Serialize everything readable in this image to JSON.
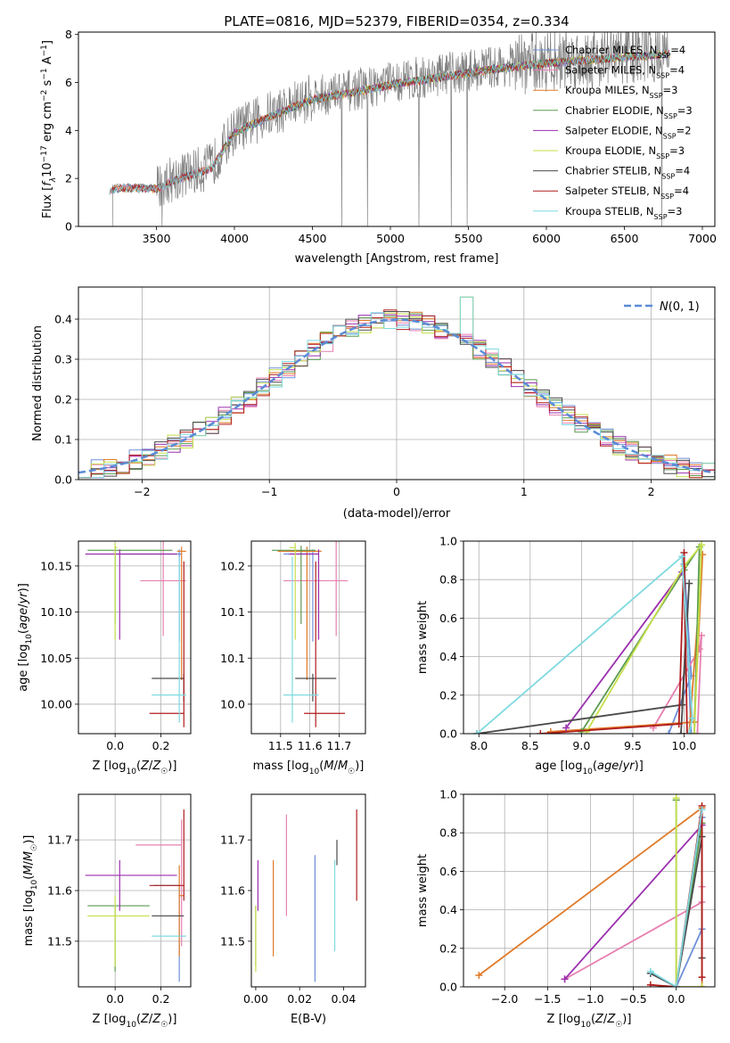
{
  "colors": {
    "chabrier_miles": "#6f8fd8",
    "salpeter_miles": "#e77fb0",
    "kroupa_miles": "#e07b2a",
    "chabrier_elodie": "#5a9a50",
    "salpeter_elodie": "#9b2fae",
    "kroupa_elodie": "#c5df4a",
    "chabrier_stelib": "#4a4a4a",
    "salpeter_stelib": "#b01c1c",
    "kroupa_stelib": "#7fd9e0",
    "gaussian": "#5b8bd6",
    "data_spectrum": "#808080"
  },
  "legend_spectrum": [
    {
      "key": "chabrier_miles",
      "label": "Chabrier MILES, N",
      "sub": "SSP",
      "tail": "=4"
    },
    {
      "key": "salpeter_miles",
      "label": "Salpeter MILES, N",
      "sub": "SSP",
      "tail": "=4"
    },
    {
      "key": "kroupa_miles",
      "label": "Kroupa MILES, N",
      "sub": "SSP",
      "tail": "=3"
    },
    {
      "key": "chabrier_elodie",
      "label": "Chabrier ELODIE, N",
      "sub": "SSP",
      "tail": "=3"
    },
    {
      "key": "salpeter_elodie",
      "label": "Salpeter ELODIE, N",
      "sub": "SSP",
      "tail": "=2"
    },
    {
      "key": "kroupa_elodie",
      "label": "Kroupa ELODIE, N",
      "sub": "SSP",
      "tail": "=3"
    },
    {
      "key": "chabrier_stelib",
      "label": "Chabrier STELIB, N",
      "sub": "SSP",
      "tail": "=4"
    },
    {
      "key": "salpeter_stelib",
      "label": "Salpeter STELIB, N",
      "sub": "SSP",
      "tail": "=4"
    },
    {
      "key": "kroupa_stelib",
      "label": "Kroupa STELIB, N",
      "sub": "SSP",
      "tail": "=3"
    }
  ],
  "chart_data": [
    {
      "id": "spectrum",
      "type": "line",
      "title": "PLATE=0816, MJD=52379, FIBERID=0354, z=0.334",
      "xlabel": "wavelength [Angstrom, rest frame]",
      "ylabel_parts": [
        "Flux [",
        "f",
        "λ",
        "10",
        "−17",
        " erg cm",
        "−2",
        " s",
        "−1",
        " A",
        "−1",
        "]"
      ],
      "xlim": [
        3000,
        7080
      ],
      "ylim": [
        0,
        8.1
      ],
      "xticks": [
        3500,
        4000,
        4500,
        5000,
        5500,
        6000,
        6500,
        7000
      ],
      "yticks": [
        0,
        2,
        4,
        6,
        8
      ],
      "grid": false,
      "legend_position": "upper right",
      "continuum_anchors": {
        "x": [
          3200,
          3300,
          3500,
          3600,
          3700,
          3850,
          4000,
          4200,
          4500,
          4700,
          5000,
          5300,
          5600,
          6000,
          6400,
          6800,
          7000
        ],
        "y": [
          1.6,
          1.7,
          1.65,
          2.0,
          2.2,
          2.5,
          4.0,
          4.6,
          5.4,
          5.6,
          6.0,
          6.3,
          6.6,
          6.9,
          7.1,
          7.3,
          7.5
        ]
      }
    },
    {
      "id": "residuals",
      "type": "step",
      "xlabel": "(data-model)/error",
      "ylabel": "Normed distribution",
      "xlim": [
        -2.5,
        2.5
      ],
      "ylim": [
        0,
        0.48
      ],
      "xticks": [
        -2,
        -1,
        0,
        1,
        2
      ],
      "yticks": [
        0.0,
        0.1,
        0.2,
        0.3,
        0.4
      ],
      "grid": true,
      "legend": "N(0,1)",
      "legend_position": "upper right",
      "bin_width": 0.1,
      "histogram_envelope": [
        0.02,
        0.03,
        0.04,
        0.045,
        0.05,
        0.06,
        0.07,
        0.085,
        0.08,
        0.07,
        0.08,
        0.09,
        0.1,
        0.12,
        0.14,
        0.15,
        0.16,
        0.19,
        0.21,
        0.23,
        0.26,
        0.28,
        0.3,
        0.32,
        0.34,
        0.35,
        0.37,
        0.39,
        0.4,
        0.41,
        0.4,
        0.38,
        0.37,
        0.41,
        0.42,
        0.4,
        0.38,
        0.39,
        0.37,
        0.35,
        0.34,
        0.32,
        0.31,
        0.36,
        0.3,
        0.29,
        0.26,
        0.23,
        0.21,
        0.2,
        0.19,
        0.17,
        0.16,
        0.14,
        0.12,
        0.1,
        0.08,
        0.07,
        0.06,
        0.05,
        0.04,
        0.035,
        0.03,
        0.025,
        0.02,
        0.015,
        0.01,
        0.01,
        0.01,
        0.01,
        0.01,
        0.01,
        0.01,
        0.01,
        0.01,
        0.01,
        0.01,
        0.01,
        0.01,
        0.01
      ],
      "spikes": {
        "0.5": 0.455,
        "0.75": 0.42,
        "-0.25": 0.43,
        "0.05": 0.43
      }
    },
    {
      "id": "age_vs_Z",
      "type": "errorbar",
      "xlabel": "Z [log10(Z/Z☉)]",
      "ylabel": "age [log10(age/yr)]",
      "xlim": [
        -0.16,
        0.33
      ],
      "ylim": [
        9.968,
        10.177
      ],
      "xticks": [
        0.0,
        0.2
      ],
      "yticks": [
        10.0,
        10.05,
        10.1,
        10.15
      ],
      "grid": true,
      "points": [
        {
          "key": "chabrier_miles",
          "x": 0.28,
          "y": 10.163,
          "xerr": [
            0.28,
            0.01
          ],
          "yerr": [
            0.095,
            0.005
          ]
        },
        {
          "key": "salpeter_miles",
          "x": 0.21,
          "y": 10.134,
          "xerr": [
            0.1,
            0.1
          ],
          "yerr": [
            0.06,
            0.06
          ]
        },
        {
          "key": "kroupa_miles",
          "x": 0.29,
          "y": 10.166,
          "xerr": [
            0.02,
            0.02
          ],
          "yerr": [
            0.14,
            0.005
          ]
        },
        {
          "key": "chabrier_elodie",
          "x": 0.0,
          "y": 10.167,
          "xerr": [
            0.12,
            0.25
          ],
          "yerr": [
            0.08,
            0.005
          ]
        },
        {
          "key": "salpeter_elodie",
          "x": 0.02,
          "y": 10.163,
          "xerr": [
            0.15,
            0.25
          ],
          "yerr": [
            0.093,
            0.005
          ]
        },
        {
          "key": "kroupa_elodie",
          "x": 0.0,
          "y": 10.17,
          "xerr": [
            0.0,
            0.01
          ],
          "yerr": [
            0.1,
            0.005
          ]
        },
        {
          "key": "chabrier_stelib",
          "x": 0.3,
          "y": 10.028,
          "xerr": [
            0.14,
            0.0
          ],
          "yerr": [
            0.025,
            0.005
          ]
        },
        {
          "key": "salpeter_stelib",
          "x": 0.3,
          "y": 9.99,
          "xerr": [
            0.15,
            0.0
          ],
          "yerr": [
            0.015,
            0.165
          ]
        },
        {
          "key": "kroupa_stelib",
          "x": 0.28,
          "y": 10.01,
          "xerr": [
            0.12,
            0.03
          ],
          "yerr": [
            0.03,
            0.15
          ]
        }
      ]
    },
    {
      "id": "age_vs_mass",
      "type": "errorbar",
      "xlabel": "mass [log10(M/M☉)]",
      "ylabel": "",
      "xlim": [
        11.4,
        11.79
      ],
      "ylim": [
        9.968,
        10.177
      ],
      "xticks": [
        11.5,
        11.6,
        11.7
      ],
      "yticks": [
        10.0,
        10.05,
        10.1,
        10.15
      ],
      "grid": true,
      "points": [
        {
          "key": "chabrier_miles",
          "x": 11.61,
          "y": 10.163,
          "xerr": [
            0.1,
            0.0
          ],
          "yerr": [
            0.095,
            0.005
          ]
        },
        {
          "key": "salpeter_miles",
          "x": 11.69,
          "y": 10.134,
          "xerr": [
            0.18,
            0.04
          ],
          "yerr": [
            0.06,
            0.06
          ]
        },
        {
          "key": "kroupa_miles",
          "x": 11.59,
          "y": 10.166,
          "xerr": [
            0.1,
            0.05
          ],
          "yerr": [
            0.14,
            0.005
          ]
        },
        {
          "key": "chabrier_elodie",
          "x": 11.57,
          "y": 10.167,
          "xerr": [
            0.1,
            0.05
          ],
          "yerr": [
            0.08,
            0.005
          ]
        },
        {
          "key": "salpeter_elodie",
          "x": 11.63,
          "y": 10.163,
          "xerr": [
            0.1,
            0.0
          ],
          "yerr": [
            0.093,
            0.005
          ]
        },
        {
          "key": "kroupa_elodie",
          "x": 11.55,
          "y": 10.17,
          "xerr": [
            0.02,
            0.0
          ],
          "yerr": [
            0.1,
            0.005
          ]
        },
        {
          "key": "chabrier_stelib",
          "x": 11.61,
          "y": 10.028,
          "xerr": [
            0.06,
            0.08
          ],
          "yerr": [
            0.025,
            0.005
          ]
        },
        {
          "key": "salpeter_stelib",
          "x": 11.62,
          "y": 9.99,
          "xerr": [
            0.04,
            0.1
          ],
          "yerr": [
            0.015,
            0.165
          ]
        },
        {
          "key": "kroupa_stelib",
          "x": 11.54,
          "y": 10.01,
          "xerr": [
            0.03,
            0.09
          ],
          "yerr": [
            0.03,
            0.15
          ]
        }
      ]
    },
    {
      "id": "weight_vs_age",
      "type": "line",
      "xlabel": "age [log10(age/yr)]",
      "ylabel": "mass weight",
      "xlim": [
        7.85,
        10.3
      ],
      "ylim": [
        0,
        1.0
      ],
      "xticks": [
        8.0,
        8.5,
        9.0,
        9.5,
        10.0
      ],
      "yticks": [
        0.0,
        0.2,
        0.4,
        0.6,
        0.8,
        1.0
      ],
      "grid": true,
      "series": [
        {
          "key": "chabrier_miles",
          "x": [
            9.85,
            10.07,
            10.0,
            10.07
          ],
          "y": [
            0.0,
            0.3,
            0.88,
            0.0
          ]
        },
        {
          "key": "salpeter_miles",
          "x": [
            9.7,
            10.15,
            10.17,
            10.13
          ],
          "y": [
            0.03,
            0.44,
            0.51,
            0.0
          ]
        },
        {
          "key": "kroupa_miles",
          "x": [
            8.7,
            10.1,
            10.18,
            10.05
          ],
          "y": [
            0.01,
            0.06,
            0.93,
            0.0
          ]
        },
        {
          "key": "chabrier_elodie",
          "x": [
            9.0,
            10.0,
            10.15,
            10.1
          ],
          "y": [
            0.01,
            0.85,
            0.97,
            0.0
          ]
        },
        {
          "key": "salpeter_elodie",
          "x": [
            8.85,
            9.98
          ],
          "y": [
            0.03,
            0.84
          ]
        },
        {
          "key": "kroupa_elodie",
          "x": [
            9.05,
            10.0,
            10.17,
            10.1
          ],
          "y": [
            0.01,
            0.87,
            0.98,
            0.0
          ]
        },
        {
          "key": "chabrier_stelib",
          "x": [
            7.98,
            9.98,
            10.05,
            9.97
          ],
          "y": [
            0.0,
            0.15,
            0.78,
            0.0
          ]
        },
        {
          "key": "salpeter_stelib",
          "x": [
            8.6,
            9.95,
            10.0,
            10.03
          ],
          "y": [
            0.0,
            0.05,
            0.94,
            0.0
          ]
        },
        {
          "key": "kroupa_stelib",
          "x": [
            7.98,
            9.98,
            10.08,
            10.05
          ],
          "y": [
            0.0,
            0.92,
            0.08,
            0.0
          ]
        }
      ]
    },
    {
      "id": "mass_vs_Z",
      "type": "errorbar",
      "xlabel": "Z [log10(Z/Z☉)]",
      "ylabel": "mass [log10(M/M☉)]",
      "xlim": [
        -0.16,
        0.33
      ],
      "ylim": [
        11.41,
        11.79
      ],
      "xticks": [
        0.0,
        0.2
      ],
      "yticks": [
        11.5,
        11.6,
        11.7
      ],
      "grid": true,
      "points": [
        {
          "key": "chabrier_miles",
          "x": 0.28,
          "y": 11.61,
          "xerr": [
            0.11,
            0.0
          ],
          "yerr": [
            0.19,
            0.0
          ]
        },
        {
          "key": "salpeter_miles",
          "x": 0.29,
          "y": 11.69,
          "xerr": [
            0.2,
            0.0
          ],
          "yerr": [
            0.2,
            0.05
          ]
        },
        {
          "key": "kroupa_miles",
          "x": 0.28,
          "y": 11.59,
          "xerr": [
            0.0,
            0.02
          ],
          "yerr": [
            0.12,
            0.06
          ]
        },
        {
          "key": "chabrier_elodie",
          "x": 0.0,
          "y": 11.57,
          "xerr": [
            0.12,
            0.15
          ],
          "yerr": [
            0.13,
            0.0
          ]
        },
        {
          "key": "salpeter_elodie",
          "x": 0.02,
          "y": 11.63,
          "xerr": [
            0.15,
            0.25
          ],
          "yerr": [
            0.07,
            0.03
          ]
        },
        {
          "key": "kroupa_elodie",
          "x": 0.0,
          "y": 11.55,
          "xerr": [
            0.12,
            0.15
          ],
          "yerr": [
            0.1,
            0.04
          ]
        },
        {
          "key": "chabrier_stelib",
          "x": 0.3,
          "y": 11.55,
          "xerr": [
            0.14,
            0.0
          ],
          "yerr": [
            0.0,
            0.0
          ]
        },
        {
          "key": "salpeter_stelib",
          "x": 0.3,
          "y": 11.61,
          "xerr": [
            0.15,
            0.0
          ],
          "yerr": [
            0.03,
            0.15
          ]
        },
        {
          "key": "kroupa_stelib",
          "x": 0.28,
          "y": 11.51,
          "xerr": [
            0.12,
            0.03
          ],
          "yerr": [
            0.0,
            0.0
          ]
        }
      ]
    },
    {
      "id": "mass_vs_ebv",
      "type": "errorbar",
      "xlabel": "E(B-V)",
      "ylabel": "",
      "xlim": [
        -0.002,
        0.05
      ],
      "ylim": [
        11.41,
        11.79
      ],
      "xticks": [
        0.0,
        0.02,
        0.04
      ],
      "yticks": [
        11.5,
        11.6,
        11.7
      ],
      "grid": false,
      "points": [
        {
          "key": "chabrier_miles",
          "x": 0.027,
          "y": 11.59,
          "xerr": [
            0.0,
            0.0
          ],
          "yerr": [
            0.17,
            0.08
          ]
        },
        {
          "key": "salpeter_miles",
          "x": 0.014,
          "y": 11.65,
          "xerr": [
            0.0,
            0.0
          ],
          "yerr": [
            0.1,
            0.1
          ]
        },
        {
          "key": "kroupa_miles",
          "x": 0.008,
          "y": 11.57,
          "xerr": [
            0.0,
            0.0
          ],
          "yerr": [
            0.1,
            0.09
          ]
        },
        {
          "key": "chabrier_elodie",
          "x": 0.0,
          "y": 11.55,
          "xerr": [
            0.0,
            0.0
          ],
          "yerr": [
            0.1,
            0.02
          ]
        },
        {
          "key": "salpeter_elodie",
          "x": 0.001,
          "y": 11.61,
          "xerr": [
            0.0,
            0.0
          ],
          "yerr": [
            0.05,
            0.05
          ]
        },
        {
          "key": "kroupa_elodie",
          "x": 0.0,
          "y": 11.52,
          "xerr": [
            0.0,
            0.0
          ],
          "yerr": [
            0.08,
            0.05
          ]
        },
        {
          "key": "chabrier_stelib",
          "x": 0.037,
          "y": 11.65,
          "xerr": [
            0.0,
            0.0
          ],
          "yerr": [
            0.0,
            0.05
          ]
        },
        {
          "key": "salpeter_stelib",
          "x": 0.046,
          "y": 11.67,
          "xerr": [
            0.0,
            0.0
          ],
          "yerr": [
            0.09,
            0.09
          ]
        },
        {
          "key": "kroupa_stelib",
          "x": 0.036,
          "y": 11.58,
          "xerr": [
            0.0,
            0.0
          ],
          "yerr": [
            0.1,
            0.08
          ]
        }
      ]
    },
    {
      "id": "weight_vs_Z",
      "type": "line",
      "xlabel": "Z [log10(Z/Z☉)]",
      "ylabel": "mass weight",
      "xlim": [
        -2.48,
        0.45
      ],
      "ylim": [
        0,
        1.0
      ],
      "xticks": [
        -2.0,
        -1.5,
        -1.0,
        -0.5,
        0.0
      ],
      "yticks": [
        0.0,
        0.2,
        0.4,
        0.6,
        0.8,
        1.0
      ],
      "grid": true,
      "series": [
        {
          "key": "chabrier_miles",
          "x": [
            0.3,
            0.0,
            0.3
          ],
          "y": [
            0.88,
            0.0,
            0.3
          ]
        },
        {
          "key": "salpeter_miles",
          "x": [
            -1.3,
            0.3,
            0.3
          ],
          "y": [
            0.04,
            0.44,
            0.52
          ]
        },
        {
          "key": "kroupa_miles",
          "x": [
            -2.3,
            0.3,
            0.3
          ],
          "y": [
            0.06,
            0.93,
            0.0
          ]
        },
        {
          "key": "chabrier_elodie",
          "x": [
            0.0,
            0.0,
            0.3
          ],
          "y": [
            0.97,
            0.0,
            0.85
          ]
        },
        {
          "key": "salpeter_elodie",
          "x": [
            -1.3,
            0.3
          ],
          "y": [
            0.04,
            0.84
          ]
        },
        {
          "key": "kroupa_elodie",
          "x": [
            0.0,
            0.0,
            0.3
          ],
          "y": [
            0.98,
            0.0,
            0.0
          ]
        },
        {
          "key": "chabrier_stelib",
          "x": [
            -0.3,
            0.0,
            0.3,
            0.3
          ],
          "y": [
            0.07,
            0.0,
            0.78,
            0.15
          ]
        },
        {
          "key": "salpeter_stelib",
          "x": [
            -0.3,
            0.0,
            0.3,
            0.3
          ],
          "y": [
            0.01,
            0.0,
            0.94,
            0.05
          ]
        },
        {
          "key": "kroupa_stelib",
          "x": [
            -0.3,
            0.0,
            0.3
          ],
          "y": [
            0.08,
            0.0,
            0.92
          ]
        }
      ]
    }
  ]
}
